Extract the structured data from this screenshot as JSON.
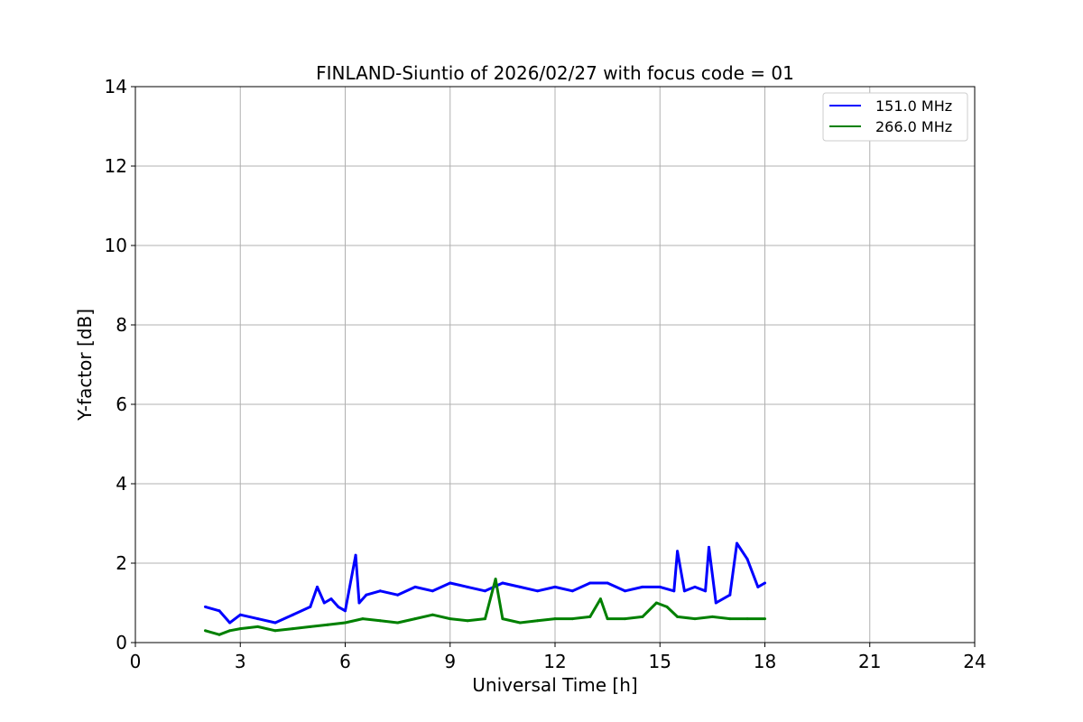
{
  "chart_data": {
    "type": "line",
    "title": "FINLAND-Siuntio of 2026/02/27 with focus code = 01",
    "xlabel": "Universal Time [h]",
    "ylabel": "Y-factor [dB]",
    "xlim": [
      0,
      24
    ],
    "ylim": [
      0,
      14
    ],
    "xticks": [
      0,
      3,
      6,
      9,
      12,
      15,
      18,
      21,
      24
    ],
    "yticks": [
      0,
      2,
      4,
      6,
      8,
      10,
      12,
      14
    ],
    "grid": true,
    "legend_position": "top-right",
    "series": [
      {
        "name": "151.0 MHz",
        "color": "#0000ff",
        "x": [
          2.0,
          2.4,
          2.7,
          3.0,
          3.5,
          4.0,
          4.5,
          5.0,
          5.2,
          5.4,
          5.6,
          5.8,
          6.0,
          6.3,
          6.4,
          6.6,
          7.0,
          7.5,
          8.0,
          8.5,
          9.0,
          9.5,
          10.0,
          10.5,
          11.0,
          11.5,
          12.0,
          12.5,
          13.0,
          13.5,
          14.0,
          14.5,
          15.0,
          15.4,
          15.5,
          15.7,
          16.0,
          16.3,
          16.4,
          16.6,
          17.0,
          17.2,
          17.5,
          17.8,
          18.0
        ],
        "values": [
          0.9,
          0.8,
          0.5,
          0.7,
          0.6,
          0.5,
          0.7,
          0.9,
          1.4,
          1.0,
          1.1,
          0.9,
          0.8,
          2.2,
          1.0,
          1.2,
          1.3,
          1.2,
          1.4,
          1.3,
          1.5,
          1.4,
          1.3,
          1.5,
          1.4,
          1.3,
          1.4,
          1.3,
          1.5,
          1.5,
          1.3,
          1.4,
          1.4,
          1.3,
          2.3,
          1.3,
          1.4,
          1.3,
          2.4,
          1.0,
          1.2,
          2.5,
          2.1,
          1.4,
          1.5
        ]
      },
      {
        "name": "266.0 MHz",
        "color": "#008000",
        "x": [
          2.0,
          2.4,
          2.7,
          3.0,
          3.5,
          4.0,
          4.5,
          5.0,
          5.5,
          6.0,
          6.5,
          7.0,
          7.5,
          8.0,
          8.5,
          9.0,
          9.5,
          10.0,
          10.3,
          10.5,
          11.0,
          11.5,
          12.0,
          12.5,
          13.0,
          13.3,
          13.5,
          14.0,
          14.5,
          14.9,
          15.2,
          15.5,
          16.0,
          16.5,
          17.0,
          17.5,
          18.0
        ],
        "values": [
          0.3,
          0.2,
          0.3,
          0.35,
          0.4,
          0.3,
          0.35,
          0.4,
          0.45,
          0.5,
          0.6,
          0.55,
          0.5,
          0.6,
          0.7,
          0.6,
          0.55,
          0.6,
          1.6,
          0.6,
          0.5,
          0.55,
          0.6,
          0.6,
          0.65,
          1.1,
          0.6,
          0.6,
          0.65,
          1.0,
          0.9,
          0.65,
          0.6,
          0.65,
          0.6,
          0.6,
          0.6
        ]
      }
    ]
  }
}
